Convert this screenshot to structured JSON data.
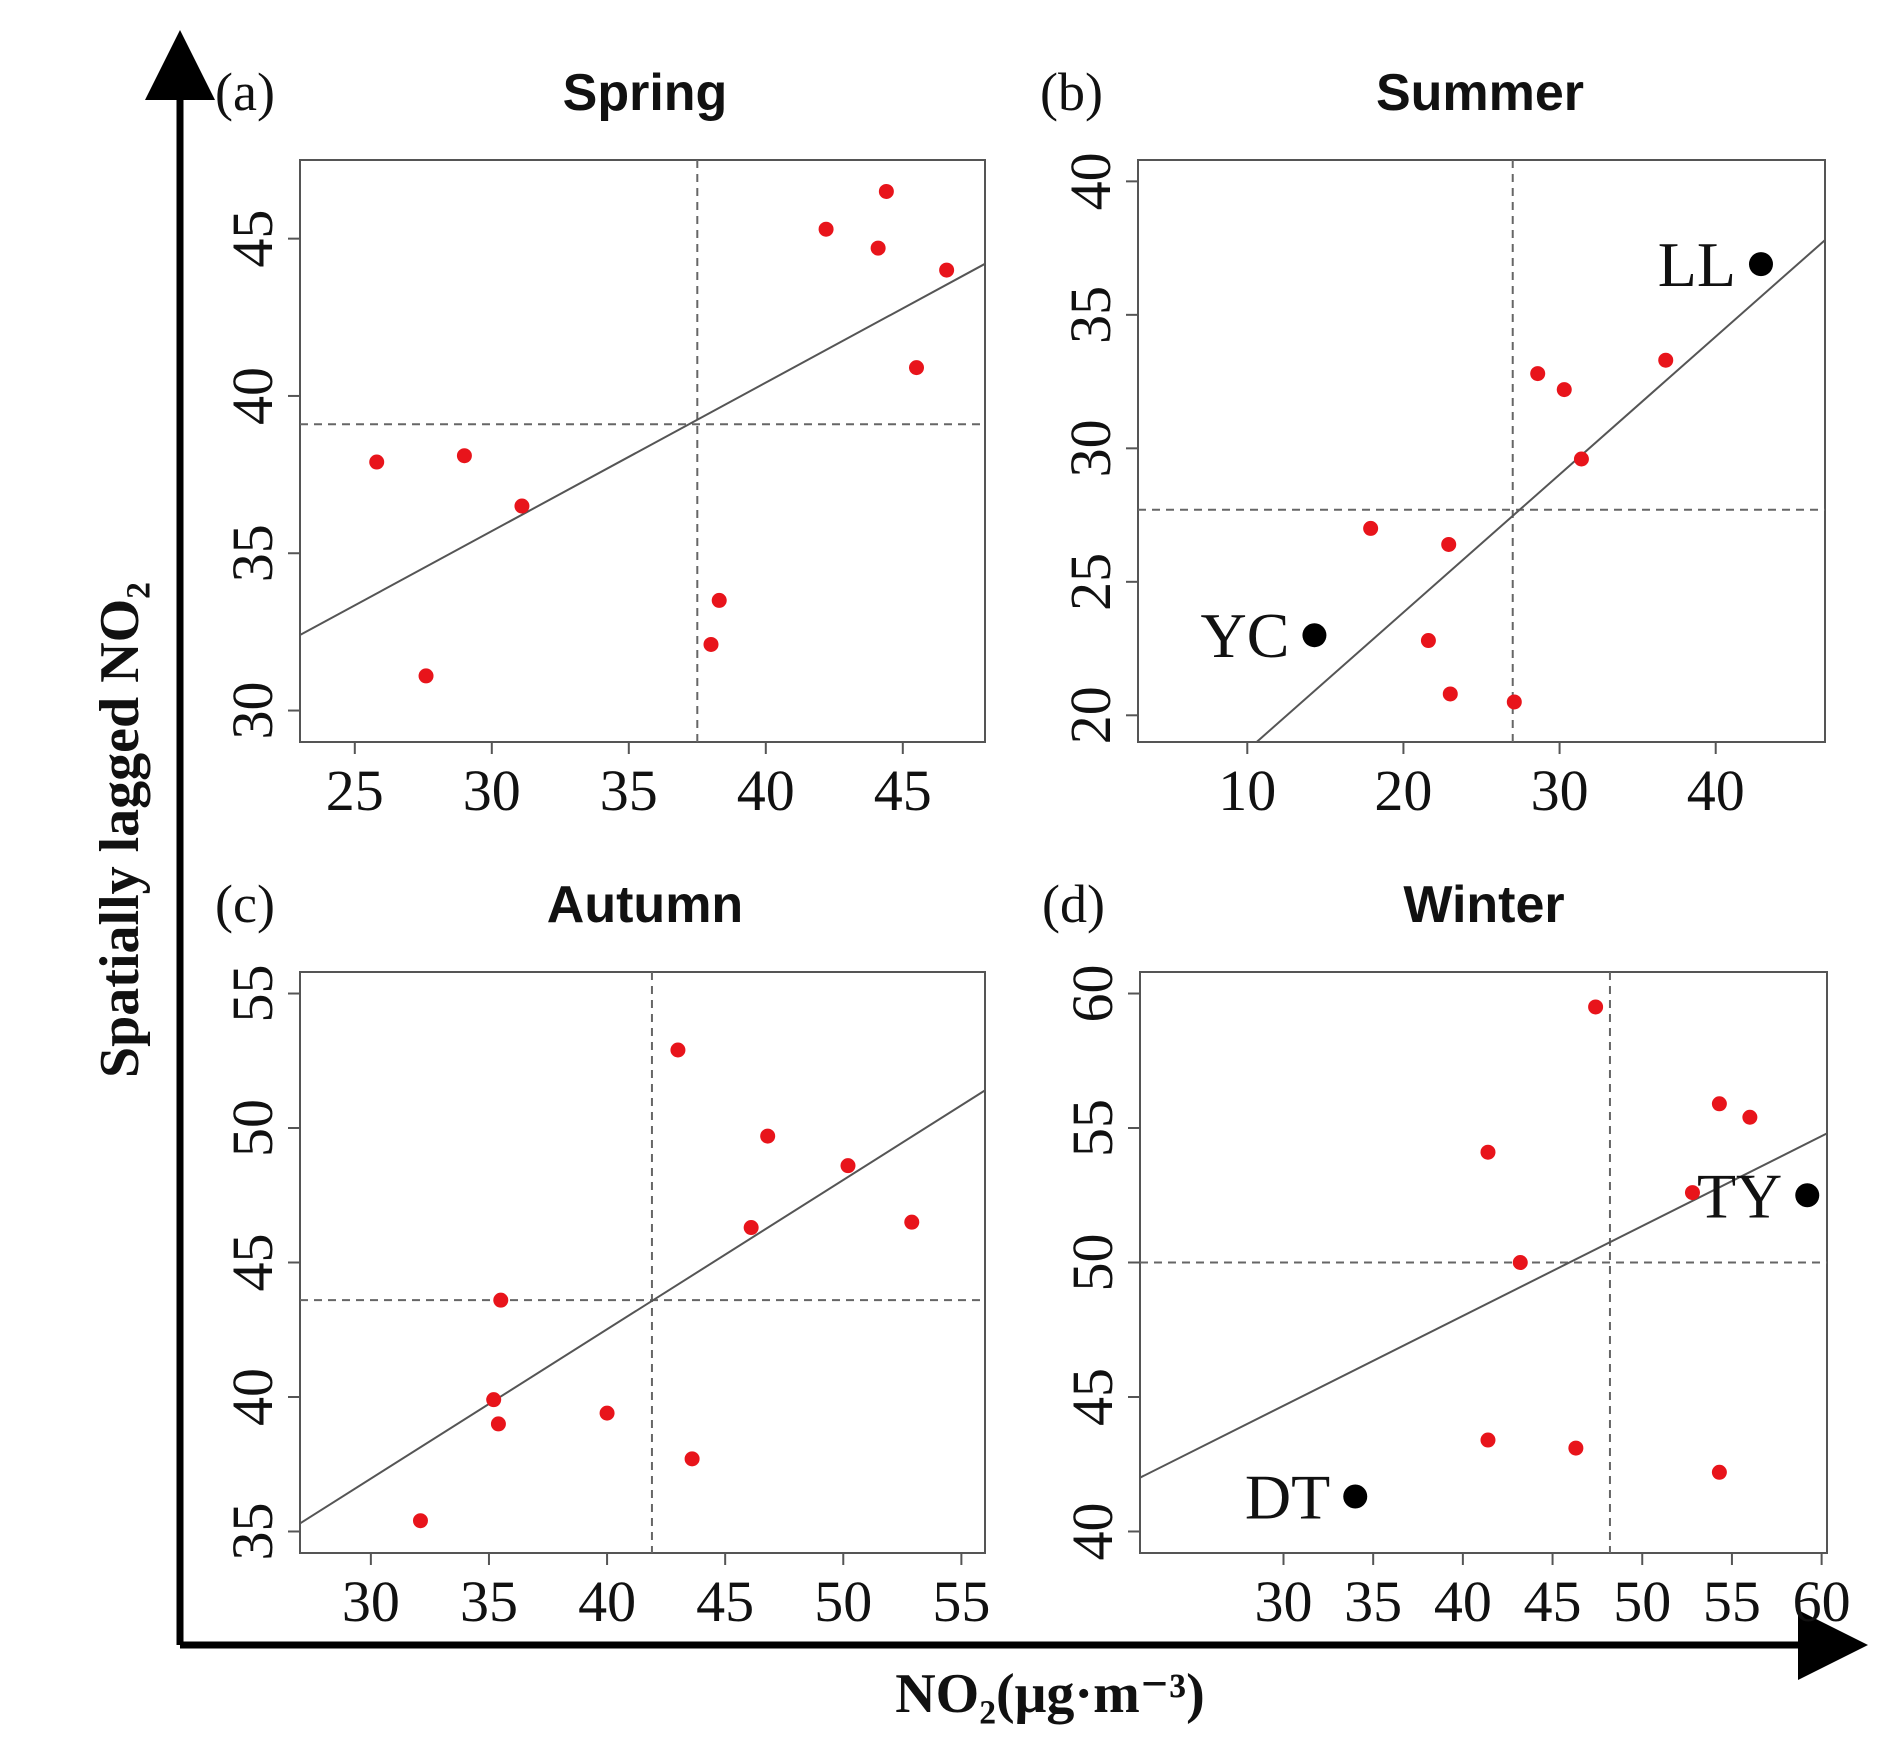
{
  "figure": {
    "x_axis_title": "NO₂(μg·m⁻³)",
    "y_axis_title": "Spatially lagged NO₂"
  },
  "colors": {
    "point": "#e8141b",
    "highlight": "#000000"
  },
  "chart_data": [
    {
      "type": "scatter",
      "panel": "(a)",
      "title": "Spring",
      "xlim": [
        23,
        48
      ],
      "ylim": [
        29,
        47.5
      ],
      "xticks": [
        25,
        30,
        35,
        40,
        45
      ],
      "yticks": [
        30,
        35,
        40,
        45
      ],
      "x_mean": 37.5,
      "y_mean": 39.1,
      "regression": [
        [
          23,
          32.4
        ],
        [
          48,
          44.2
        ]
      ],
      "points": [
        {
          "x": 25.8,
          "y": 37.9
        },
        {
          "x": 27.6,
          "y": 31.1
        },
        {
          "x": 29.0,
          "y": 38.1
        },
        {
          "x": 31.1,
          "y": 36.5
        },
        {
          "x": 38.0,
          "y": 32.1
        },
        {
          "x": 38.3,
          "y": 33.5
        },
        {
          "x": 42.2,
          "y": 45.3
        },
        {
          "x": 44.1,
          "y": 44.7
        },
        {
          "x": 44.4,
          "y": 46.5
        },
        {
          "x": 45.5,
          "y": 40.9
        },
        {
          "x": 46.6,
          "y": 44.0
        }
      ],
      "labeled_points": []
    },
    {
      "type": "scatter",
      "panel": "(b)",
      "title": "Summer",
      "xlim": [
        3,
        47
      ],
      "ylim": [
        19,
        40.8
      ],
      "xticks": [
        10,
        20,
        30,
        40
      ],
      "yticks": [
        20,
        25,
        30,
        35,
        40
      ],
      "x_mean": 27.0,
      "y_mean": 27.7,
      "regression": [
        [
          10.6,
          19
        ],
        [
          47,
          37.8
        ]
      ],
      "points": [
        {
          "x": 17.9,
          "y": 27.0
        },
        {
          "x": 21.6,
          "y": 22.8
        },
        {
          "x": 22.9,
          "y": 26.4
        },
        {
          "x": 23.0,
          "y": 20.8
        },
        {
          "x": 27.1,
          "y": 20.5
        },
        {
          "x": 28.6,
          "y": 32.8
        },
        {
          "x": 30.3,
          "y": 32.2
        },
        {
          "x": 31.4,
          "y": 29.6
        },
        {
          "x": 36.8,
          "y": 33.3
        }
      ],
      "labeled_points": [
        {
          "label": "YC",
          "x": 14.3,
          "y": 23.0
        },
        {
          "label": "LL",
          "x": 42.9,
          "y": 36.9
        }
      ]
    },
    {
      "type": "scatter",
      "panel": "(c)",
      "title": "Autumn",
      "xlim": [
        27,
        56
      ],
      "ylim": [
        34.2,
        55.8
      ],
      "xticks": [
        30,
        35,
        40,
        45,
        50,
        55
      ],
      "yticks": [
        35,
        40,
        45,
        50,
        55
      ],
      "x_mean": 41.9,
      "y_mean": 43.6,
      "regression": [
        [
          27,
          35.3
        ],
        [
          56,
          51.4
        ]
      ],
      "points": [
        {
          "x": 32.1,
          "y": 35.4
        },
        {
          "x": 35.2,
          "y": 39.9
        },
        {
          "x": 35.4,
          "y": 39.0
        },
        {
          "x": 35.5,
          "y": 43.6
        },
        {
          "x": 40.0,
          "y": 39.4
        },
        {
          "x": 43.0,
          "y": 52.9
        },
        {
          "x": 43.6,
          "y": 37.7
        },
        {
          "x": 46.1,
          "y": 46.3
        },
        {
          "x": 46.8,
          "y": 49.7
        },
        {
          "x": 50.2,
          "y": 48.6
        },
        {
          "x": 52.9,
          "y": 46.5
        }
      ],
      "labeled_points": []
    },
    {
      "type": "scatter",
      "panel": "(d)",
      "title": "Winter",
      "xlim": [
        22,
        60.3
      ],
      "ylim": [
        39.2,
        60.8
      ],
      "xticks": [
        30,
        35,
        40,
        45,
        50,
        55,
        60
      ],
      "yticks": [
        40,
        45,
        50,
        55,
        60
      ],
      "x_mean": 48.2,
      "y_mean": 50.0,
      "regression": [
        [
          22,
          42.0
        ],
        [
          60.3,
          54.8
        ]
      ],
      "points": [
        {
          "x": 41.4,
          "y": 54.1
        },
        {
          "x": 41.4,
          "y": 43.4
        },
        {
          "x": 43.2,
          "y": 50.0
        },
        {
          "x": 46.3,
          "y": 43.1
        },
        {
          "x": 47.4,
          "y": 59.5
        },
        {
          "x": 52.8,
          "y": 52.6
        },
        {
          "x": 54.3,
          "y": 55.9
        },
        {
          "x": 54.3,
          "y": 42.2
        },
        {
          "x": 56.0,
          "y": 55.4
        }
      ],
      "labeled_points": [
        {
          "label": "DT",
          "x": 34.0,
          "y": 41.3
        },
        {
          "label": "TY",
          "x": 59.2,
          "y": 52.5
        }
      ]
    }
  ]
}
